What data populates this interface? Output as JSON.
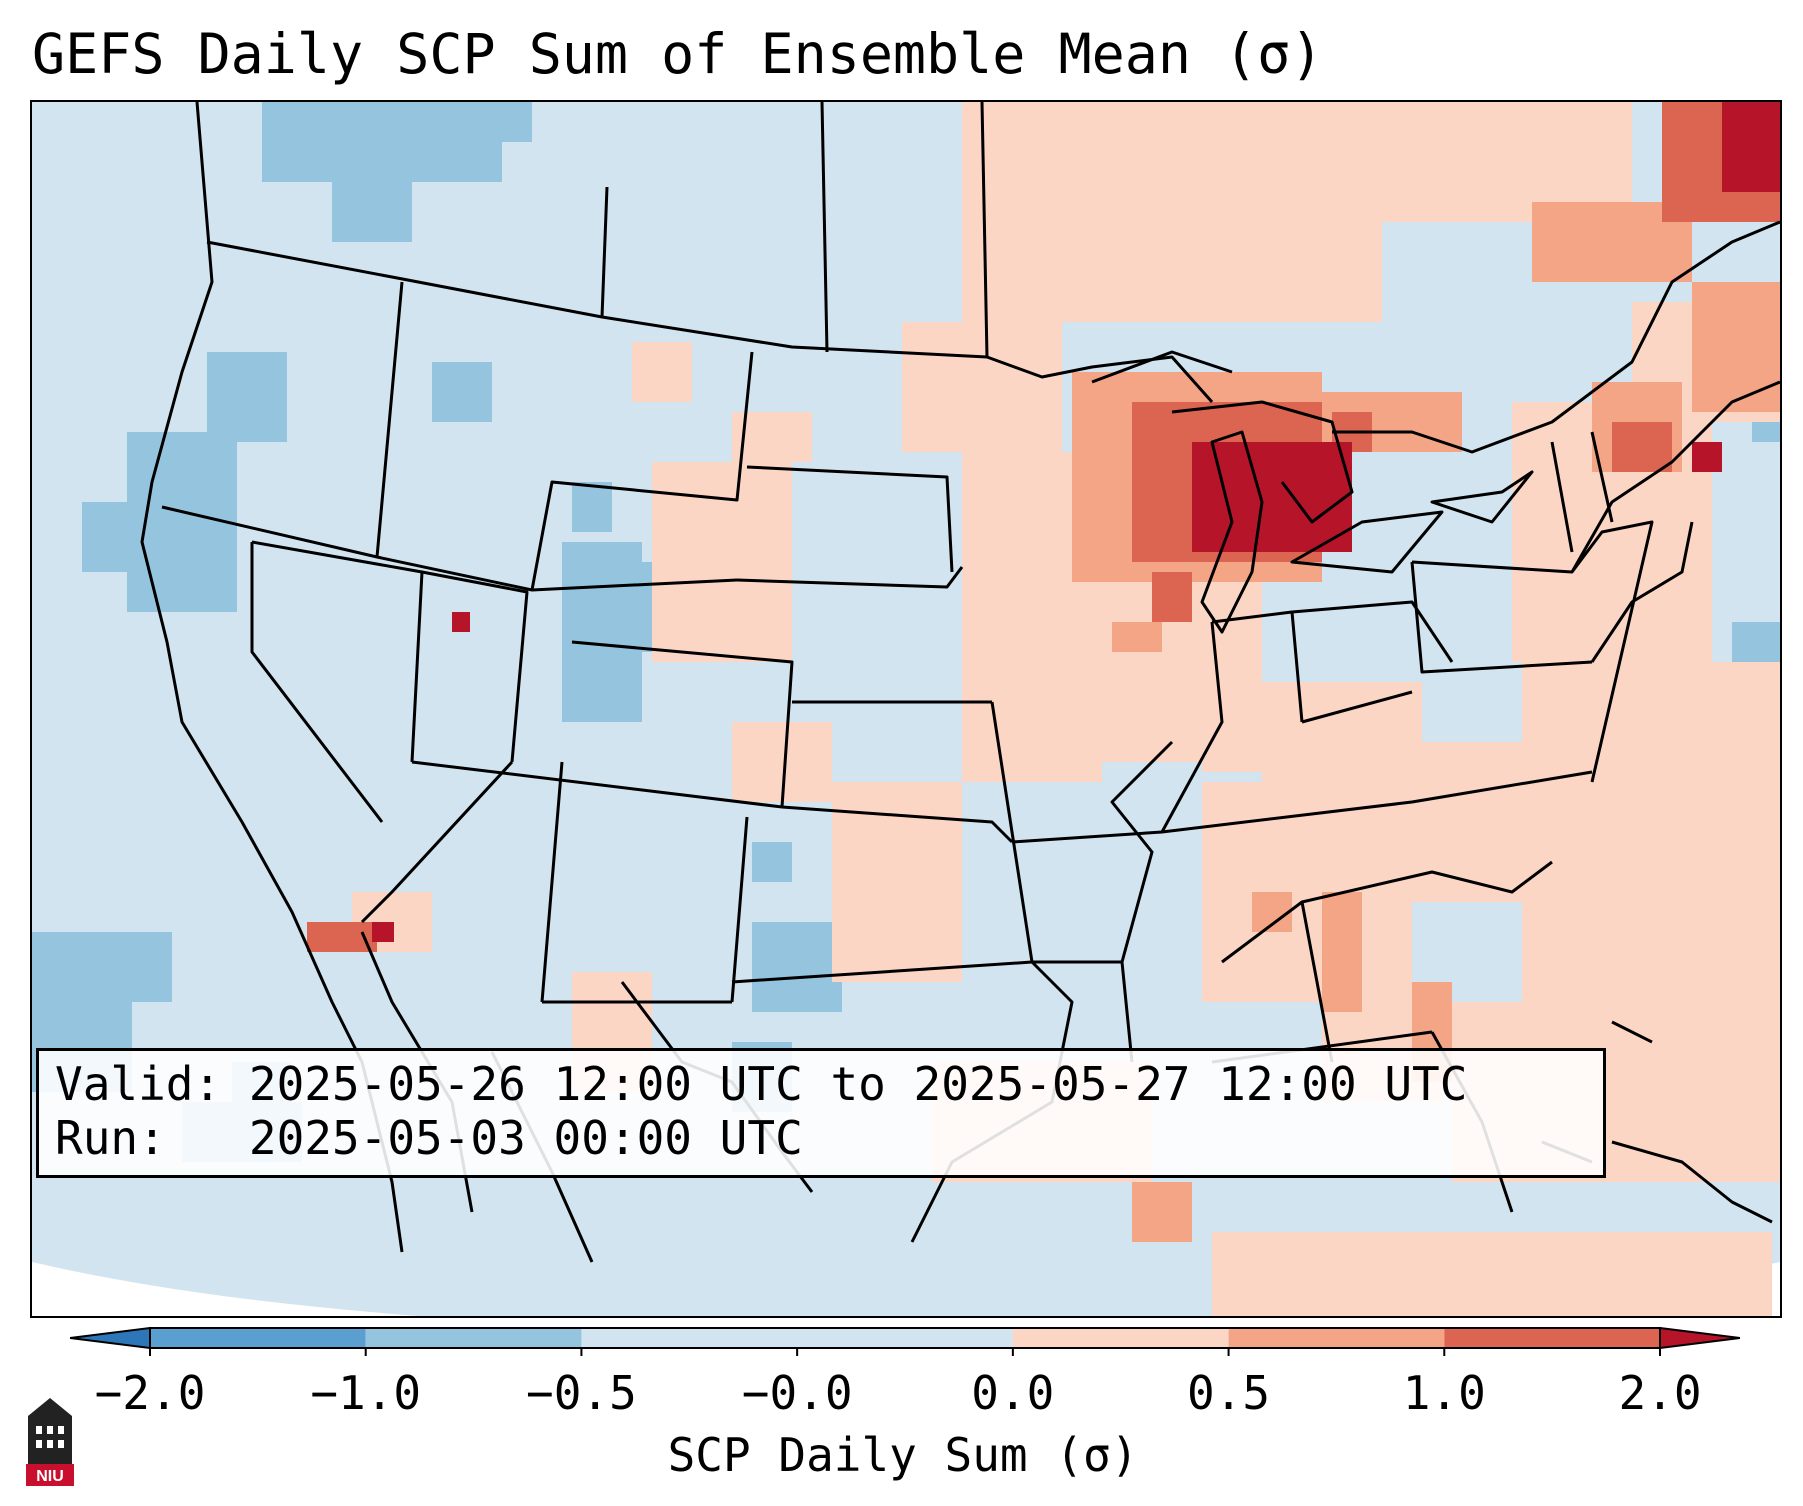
{
  "title": "GEFS Daily SCP Sum of Ensemble Mean (σ)",
  "info_box": {
    "valid_label": "Valid:",
    "valid_value": "2025-05-26 12:00 UTC to 2025-05-27 12:00 UTC",
    "run_label": "Run:",
    "run_value": "2025-05-03 00:00 UTC"
  },
  "colorbar": {
    "label": "SCP Daily Sum (σ)",
    "ticks": [
      "−2.0",
      "−1.0",
      "−0.5",
      "−0.0",
      "0.0",
      "0.5",
      "1.0",
      "2.0"
    ],
    "colors": [
      "#2d76b8",
      "#5a9fcf",
      "#95c4df",
      "#d1e4ef",
      "#fbd6c4",
      "#f3a586",
      "#dc6551",
      "#b61428"
    ],
    "extend": "both"
  },
  "colors": {
    "neutral_blue": "#d1e4ef",
    "light_blue": "#95c4df",
    "light_red": "#fbd6c4",
    "mid_red": "#f3a586",
    "strong_red": "#dc6551",
    "dark_red": "#b61428"
  },
  "logo": {
    "icon": "university-tower-icon",
    "text": "NIU"
  }
}
